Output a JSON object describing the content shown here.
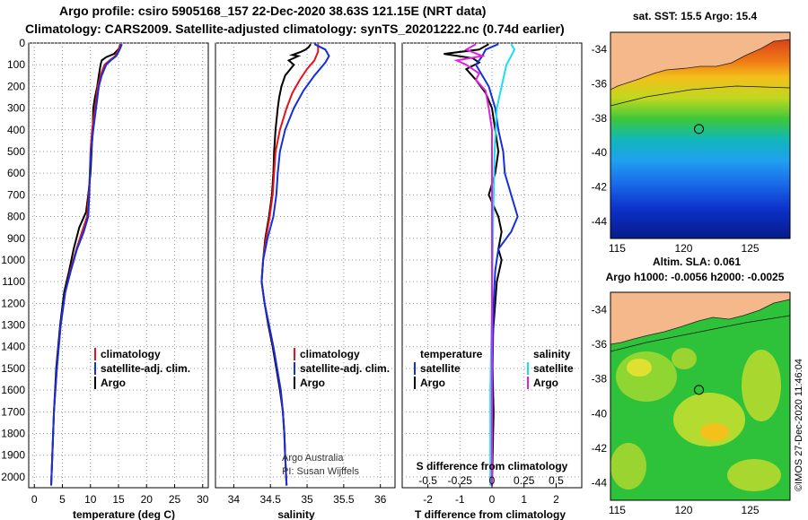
{
  "title": {
    "line1": "Argo profile: csiro 5905168_157 22-Dec-2020 38.63S 121.15E (NRT data)",
    "line2": "Climatology: CARS2009. Satellite-adjusted climatology: synTS_20201222.nc (0.74d earlier)"
  },
  "colors": {
    "argo": "#000000",
    "climatology": "#e8121c",
    "satellite": "#1430d8",
    "sat_salinity": "#18e0ee",
    "argo_salinity": "#e020dc",
    "land": "#f5b88a"
  },
  "chart_data": [
    {
      "type": "line",
      "id": "temperature",
      "xlabel": "temperature (deg C)",
      "ylabel": "",
      "xlim": [
        -1,
        31
      ],
      "ylim": [
        2050,
        0
      ],
      "xticks": [
        0,
        5,
        10,
        15,
        20,
        25,
        30
      ],
      "yticks": [
        0,
        100,
        200,
        300,
        400,
        500,
        600,
        700,
        800,
        900,
        1000,
        1100,
        1200,
        1300,
        1400,
        1500,
        1600,
        1700,
        1800,
        1900,
        2000
      ],
      "legend": [
        {
          "name": "climatology",
          "color": "#e8121c"
        },
        {
          "name": "satellite-adj. clim.",
          "color": "#1430d8"
        },
        {
          "name": "Argo",
          "color": "#000000"
        }
      ],
      "series": [
        {
          "name": "Argo",
          "color": "#000000",
          "points": [
            [
              15.3,
              5
            ],
            [
              15.1,
              25
            ],
            [
              14.2,
              50
            ],
            [
              12.8,
              65
            ],
            [
              12.0,
              80
            ],
            [
              11.8,
              100
            ],
            [
              11.5,
              150
            ],
            [
              11.2,
              200
            ],
            [
              10.8,
              250
            ],
            [
              10.5,
              300
            ],
            [
              10.4,
              400
            ],
            [
              10.2,
              500
            ],
            [
              10.0,
              600
            ],
            [
              9.6,
              700
            ],
            [
              9.2,
              780
            ],
            [
              8.0,
              850
            ],
            [
              7.0,
              950
            ],
            [
              6.2,
              1050
            ],
            [
              5.3,
              1150
            ],
            [
              4.6,
              1300
            ],
            [
              3.9,
              1500
            ],
            [
              3.5,
              1700
            ],
            [
              3.2,
              1900
            ],
            [
              3.0,
              2040
            ]
          ]
        },
        {
          "name": "climatology",
          "color": "#e8121c",
          "points": [
            [
              15.4,
              5
            ],
            [
              15.0,
              30
            ],
            [
              14.4,
              60
            ],
            [
              13.4,
              80
            ],
            [
              12.5,
              100
            ],
            [
              11.8,
              150
            ],
            [
              11.3,
              200
            ],
            [
              10.8,
              300
            ],
            [
              10.3,
              400
            ],
            [
              10.0,
              500
            ],
            [
              9.9,
              600
            ],
            [
              9.7,
              700
            ],
            [
              9.4,
              800
            ],
            [
              8.5,
              870
            ],
            [
              7.5,
              950
            ],
            [
              6.4,
              1050
            ],
            [
              5.5,
              1150
            ],
            [
              4.7,
              1300
            ],
            [
              4.0,
              1500
            ],
            [
              3.5,
              1700
            ],
            [
              3.2,
              1900
            ],
            [
              3.0,
              2040
            ]
          ]
        },
        {
          "name": "satellite-adj. clim.",
          "color": "#1430d8",
          "points": [
            [
              15.6,
              5
            ],
            [
              15.2,
              30
            ],
            [
              14.6,
              60
            ],
            [
              13.6,
              80
            ],
            [
              12.8,
              100
            ],
            [
              12.0,
              150
            ],
            [
              11.5,
              200
            ],
            [
              11.0,
              300
            ],
            [
              10.5,
              400
            ],
            [
              10.1,
              500
            ],
            [
              9.9,
              600
            ],
            [
              9.8,
              700
            ],
            [
              9.6,
              800
            ],
            [
              8.8,
              870
            ],
            [
              7.6,
              950
            ],
            [
              6.5,
              1050
            ],
            [
              5.5,
              1150
            ],
            [
              4.7,
              1300
            ],
            [
              4.0,
              1500
            ],
            [
              3.5,
              1700
            ],
            [
              3.2,
              1900
            ],
            [
              3.0,
              2040
            ]
          ]
        }
      ]
    },
    {
      "type": "line",
      "id": "salinity",
      "xlabel": "salinity",
      "xlim": [
        33.75,
        36.2
      ],
      "ylim": [
        2050,
        0
      ],
      "xticks": [
        34,
        34.5,
        35,
        35.5,
        36
      ],
      "xtick_labels": [
        "34",
        "34.5",
        "35",
        "35.5",
        "36"
      ],
      "legend": [
        {
          "name": "climatology",
          "color": "#e8121c"
        },
        {
          "name": "satellite-adj. clim.",
          "color": "#1430d8"
        },
        {
          "name": "Argo",
          "color": "#000000"
        }
      ],
      "annotation": [
        "Argo Australia",
        "PI: Susan Wijffels"
      ],
      "series": [
        {
          "name": "Argo",
          "color": "#000000",
          "points": [
            [
              35.05,
              5
            ],
            [
              35.02,
              20
            ],
            [
              34.98,
              30
            ],
            [
              34.92,
              40
            ],
            [
              34.8,
              55
            ],
            [
              34.88,
              60
            ],
            [
              34.75,
              80
            ],
            [
              34.82,
              100
            ],
            [
              34.7,
              150
            ],
            [
              34.65,
              200
            ],
            [
              34.62,
              250
            ],
            [
              34.6,
              300
            ],
            [
              34.57,
              400
            ],
            [
              34.55,
              500
            ],
            [
              34.54,
              600
            ],
            [
              34.52,
              700
            ],
            [
              34.48,
              800
            ],
            [
              34.43,
              900
            ],
            [
              34.4,
              1000
            ],
            [
              34.38,
              1100
            ],
            [
              34.42,
              1200
            ],
            [
              34.47,
              1300
            ],
            [
              34.53,
              1400
            ],
            [
              34.58,
              1500
            ],
            [
              34.63,
              1600
            ],
            [
              34.67,
              1700
            ],
            [
              34.69,
              1800
            ],
            [
              34.7,
              1900
            ],
            [
              34.72,
              2040
            ]
          ]
        },
        {
          "name": "climatology",
          "color": "#e8121c",
          "points": [
            [
              35.15,
              5
            ],
            [
              35.15,
              40
            ],
            [
              35.1,
              80
            ],
            [
              35.0,
              120
            ],
            [
              34.9,
              170
            ],
            [
              34.8,
              230
            ],
            [
              34.72,
              300
            ],
            [
              34.63,
              400
            ],
            [
              34.57,
              500
            ],
            [
              34.55,
              600
            ],
            [
              34.53,
              700
            ],
            [
              34.49,
              800
            ],
            [
              34.44,
              900
            ],
            [
              34.4,
              1000
            ],
            [
              34.38,
              1100
            ],
            [
              34.42,
              1200
            ],
            [
              34.48,
              1300
            ],
            [
              34.54,
              1400
            ],
            [
              34.59,
              1500
            ],
            [
              34.64,
              1600
            ],
            [
              34.67,
              1700
            ],
            [
              34.69,
              1800
            ],
            [
              34.7,
              1900
            ],
            [
              34.72,
              2040
            ]
          ]
        },
        {
          "name": "satellite-adj. clim.",
          "color": "#1430d8",
          "points": [
            [
              35.1,
              5
            ],
            [
              35.25,
              30
            ],
            [
              35.3,
              60
            ],
            [
              35.25,
              90
            ],
            [
              35.1,
              150
            ],
            [
              34.95,
              220
            ],
            [
              34.82,
              300
            ],
            [
              34.7,
              400
            ],
            [
              34.63,
              500
            ],
            [
              34.6,
              600
            ],
            [
              34.58,
              700
            ],
            [
              34.54,
              800
            ],
            [
              34.46,
              900
            ],
            [
              34.4,
              1000
            ],
            [
              34.38,
              1100
            ],
            [
              34.42,
              1200
            ],
            [
              34.48,
              1300
            ],
            [
              34.54,
              1400
            ],
            [
              34.59,
              1500
            ],
            [
              34.64,
              1600
            ],
            [
              34.67,
              1700
            ],
            [
              34.69,
              1800
            ],
            [
              34.7,
              1900
            ],
            [
              34.72,
              2040
            ]
          ]
        }
      ]
    },
    {
      "type": "line",
      "id": "difference",
      "xlabel": "T difference from climatology",
      "xlim": [
        -2.8,
        2.8
      ],
      "ylim": [
        2050,
        0
      ],
      "xticks": [
        -2,
        -1,
        0,
        1,
        2
      ],
      "top_axis_label": "S difference from climatology",
      "top_ticks": [
        -0.5,
        -0.25,
        0,
        0.25,
        0.5
      ],
      "top_tick_labels": [
        "-0.5",
        "-0.25",
        "0",
        "0.25",
        "0.5"
      ],
      "legend_left": {
        "title": "temperature",
        "items": [
          {
            "name": "satellite",
            "color": "#1430d8"
          },
          {
            "name": "Argo",
            "color": "#000000"
          }
        ]
      },
      "legend_right": {
        "title": "salinity",
        "items": [
          {
            "name": "satellite",
            "color": "#18e0ee"
          },
          {
            "name": "Argo",
            "color": "#e020dc"
          }
        ]
      },
      "series": [
        {
          "name": "temperature Argo",
          "color": "#000000",
          "points": [
            [
              -0.1,
              5
            ],
            [
              -0.4,
              30
            ],
            [
              -1.5,
              50
            ],
            [
              -0.6,
              70
            ],
            [
              -0.4,
              90
            ],
            [
              -0.8,
              120
            ],
            [
              -0.5,
              170
            ],
            [
              -0.2,
              230
            ],
            [
              0.0,
              300
            ],
            [
              0.1,
              400
            ],
            [
              0.2,
              500
            ],
            [
              0.1,
              600
            ],
            [
              -0.1,
              700
            ],
            [
              0.2,
              800
            ],
            [
              0.3,
              870
            ],
            [
              0.2,
              950
            ],
            [
              0.3,
              1000
            ],
            [
              0.15,
              1100
            ],
            [
              0.1,
              1200
            ],
            [
              0.0,
              1400
            ],
            [
              0.05,
              1700
            ],
            [
              0.0,
              2040
            ]
          ]
        },
        {
          "name": "temperature satellite",
          "color": "#1430d8",
          "points": [
            [
              0.2,
              5
            ],
            [
              -0.2,
              30
            ],
            [
              -0.3,
              60
            ],
            [
              -0.5,
              100
            ],
            [
              -0.1,
              200
            ],
            [
              0.1,
              300
            ],
            [
              0.2,
              400
            ],
            [
              0.35,
              500
            ],
            [
              0.4,
              600
            ],
            [
              0.6,
              700
            ],
            [
              0.8,
              800
            ],
            [
              0.6,
              870
            ],
            [
              0.2,
              950
            ],
            [
              0.1,
              1050
            ],
            [
              0.05,
              1200
            ],
            [
              0.02,
              1500
            ],
            [
              0.0,
              2040
            ]
          ]
        },
        {
          "name": "salinity satellite",
          "color": "#18e0ee",
          "points": [
            [
              0.6,
              5
            ],
            [
              0.7,
              30
            ],
            [
              0.6,
              60
            ],
            [
              0.45,
              100
            ],
            [
              0.3,
              200
            ],
            [
              0.15,
              300
            ],
            [
              0.08,
              500
            ],
            [
              0.04,
              800
            ],
            [
              0.0,
              1200
            ],
            [
              -0.05,
              1600
            ],
            [
              -0.05,
              2040
            ]
          ]
        },
        {
          "name": "salinity Argo",
          "color": "#e020dc",
          "points": [
            [
              -0.5,
              5
            ],
            [
              -0.8,
              30
            ],
            [
              -0.3,
              60
            ],
            [
              -1.1,
              80
            ],
            [
              -0.8,
              100
            ],
            [
              -0.4,
              140
            ],
            [
              -0.5,
              170
            ],
            [
              -0.2,
              220
            ],
            [
              -0.1,
              300
            ],
            [
              0.0,
              400
            ],
            [
              0.0,
              600
            ],
            [
              0.0,
              800
            ],
            [
              0.0,
              1200
            ],
            [
              0.0,
              2040
            ]
          ]
        }
      ]
    },
    {
      "type": "heatmap",
      "id": "sst_map",
      "title": "sat. SST: 15.5 Argo: 15.4",
      "xlim": [
        114.5,
        128
      ],
      "ylim": [
        -45,
        -33
      ],
      "xticks": [
        115,
        120,
        125
      ],
      "yticks": [
        -34,
        -36,
        -38,
        -40,
        -42,
        -44
      ],
      "marker": {
        "lon": 121.15,
        "lat": -38.63
      }
    },
    {
      "type": "heatmap",
      "id": "sla_map",
      "title": "Altim. SLA: 0.061",
      "subtitle": "Argo h1000: -0.0056 h2000: -0.0025",
      "xlim": [
        114.5,
        128
      ],
      "ylim": [
        -45,
        -33
      ],
      "xticks": [
        115,
        120,
        125
      ],
      "yticks": [
        -34,
        -36,
        -38,
        -40,
        -42,
        -44
      ],
      "marker": {
        "lon": 121.15,
        "lat": -38.63
      }
    }
  ],
  "credit": "©IMOS 27-Dec-2020 11:46:04"
}
